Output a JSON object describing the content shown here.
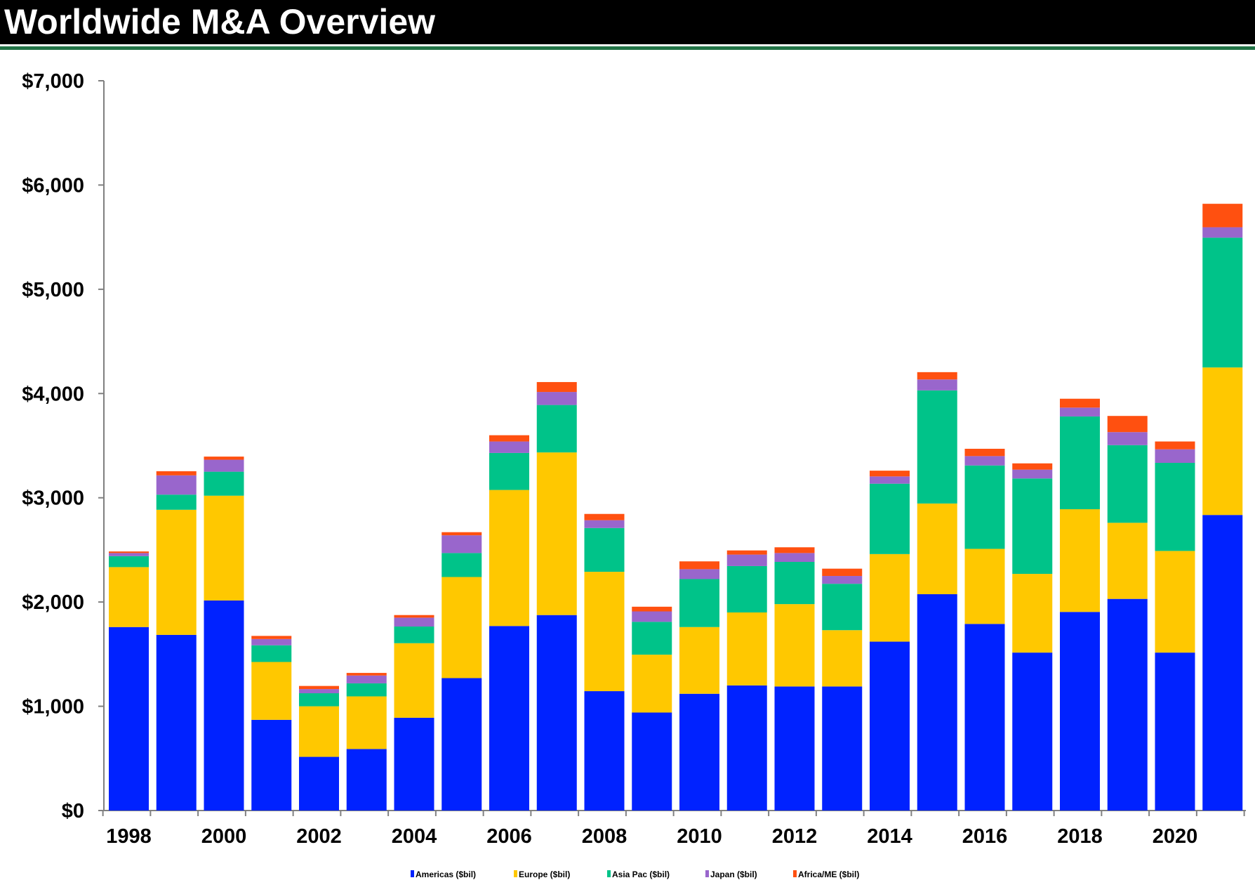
{
  "header": {
    "title": "Worldwide M&A Overview"
  },
  "chart_data": {
    "type": "bar",
    "stacked": true,
    "title": "",
    "xlabel": "",
    "ylabel": "",
    "ylim": [
      0,
      7000
    ],
    "yticks": [
      0,
      1000,
      2000,
      3000,
      4000,
      5000,
      6000,
      7000
    ],
    "ytick_labels": [
      "$0",
      "$1,000",
      "$2,000",
      "$3,000",
      "$4,000",
      "$5,000",
      "$6,000",
      "$7,000"
    ],
    "grid": false,
    "legend_position": "bottom",
    "categories": [
      "1998",
      "1999",
      "2000",
      "2001",
      "2002",
      "2003",
      "2004",
      "2005",
      "2006",
      "2007",
      "2008",
      "2009",
      "2010",
      "2011",
      "2012",
      "2013",
      "2014",
      "2015",
      "2016",
      "2017",
      "2018",
      "2019",
      "2020",
      "2021"
    ],
    "xtick_labels": [
      "1998",
      "2000",
      "2002",
      "2004",
      "2006",
      "2008",
      "2010",
      "2012",
      "2014",
      "2016",
      "2018",
      "2020"
    ],
    "series": [
      {
        "name": "Americas ($bil)",
        "color": "#0022ff",
        "values": [
          1760,
          1685,
          2015,
          870,
          515,
          590,
          890,
          1270,
          1770,
          1875,
          1145,
          940,
          1120,
          1200,
          1190,
          1190,
          1620,
          2075,
          1790,
          1515,
          1905,
          2030,
          1515,
          2835
        ]
      },
      {
        "name": "Europe ($bil)",
        "color": "#ffc800",
        "values": [
          575,
          1200,
          1005,
          555,
          485,
          505,
          715,
          970,
          1305,
          1560,
          1145,
          555,
          640,
          700,
          790,
          540,
          840,
          870,
          720,
          755,
          985,
          730,
          975,
          1415
        ]
      },
      {
        "name": "Asia Pac ($bil)",
        "color": "#00c389",
        "values": [
          105,
          145,
          230,
          160,
          125,
          125,
          160,
          230,
          355,
          455,
          420,
          315,
          460,
          445,
          405,
          445,
          675,
          1085,
          800,
          915,
          890,
          745,
          845,
          1245
        ]
      },
      {
        "name": "Japan ($bil)",
        "color": "#9966cc",
        "values": [
          30,
          185,
          115,
          60,
          40,
          75,
          85,
          170,
          110,
          125,
          75,
          100,
          95,
          110,
          85,
          75,
          70,
          105,
          90,
          85,
          85,
          125,
          130,
          100
        ]
      },
      {
        "name": "Africa/ME ($bil)",
        "color": "#ff5010",
        "values": [
          15,
          40,
          30,
          30,
          30,
          25,
          25,
          30,
          60,
          95,
          60,
          45,
          75,
          40,
          55,
          70,
          55,
          70,
          70,
          60,
          85,
          155,
          75,
          225
        ]
      }
    ]
  }
}
